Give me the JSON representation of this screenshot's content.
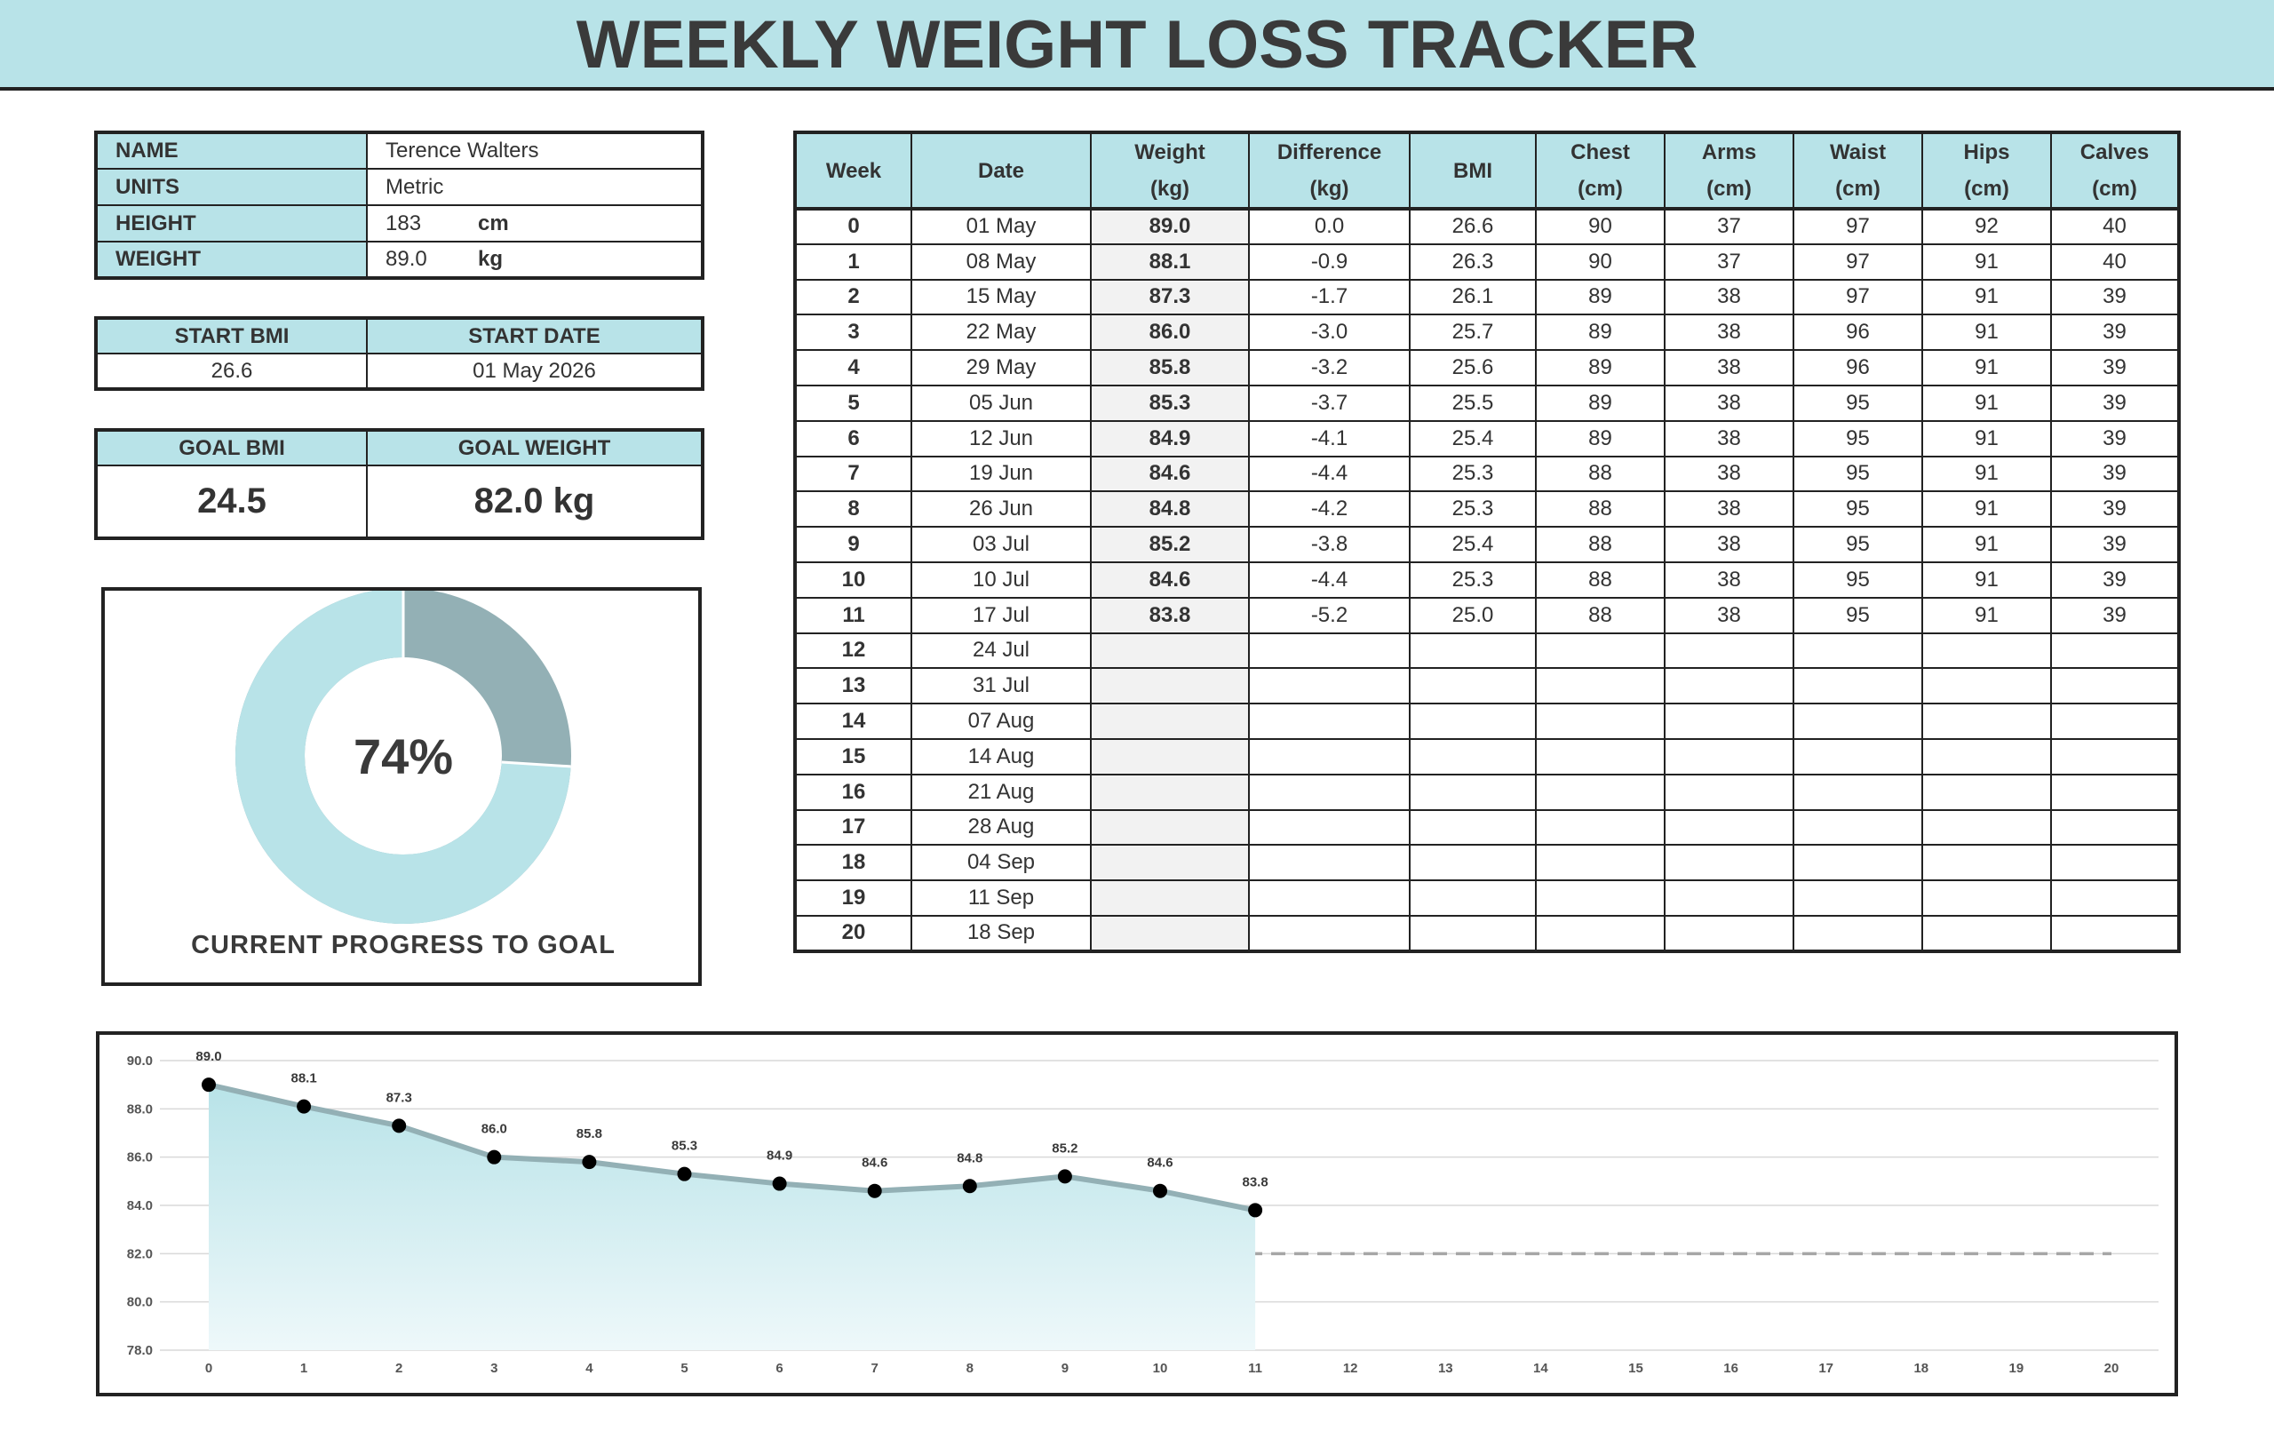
{
  "title": "WEEKLY WEIGHT LOSS TRACKER",
  "profile": [
    {
      "label": "NAME",
      "value": "Terence Walters"
    },
    {
      "label": "UNITS",
      "value": "Metric"
    },
    {
      "label": "HEIGHT",
      "value": "183",
      "unit": "cm"
    },
    {
      "label": "WEIGHT",
      "value": "89.0",
      "unit": "kg"
    }
  ],
  "start": {
    "headers": [
      "START BMI",
      "START DATE"
    ],
    "values": [
      "26.6",
      "01 May 2026"
    ]
  },
  "goal": {
    "headers": [
      "GOAL BMI",
      "GOAL WEIGHT"
    ],
    "values": [
      "24.5",
      "82.0 kg"
    ]
  },
  "progress": {
    "type": "donut",
    "value": 74,
    "label": "74%",
    "lim": [
      0,
      100
    ],
    "caption": "CURRENT PROGRESS TO GOAL",
    "colors": [
      "#b8e3e8",
      "#93b0b5"
    ]
  },
  "table": {
    "headers": [
      {
        "name": "Week"
      },
      {
        "name": "Date"
      },
      {
        "name": "Weight",
        "unit": "(kg)"
      },
      {
        "name": "Difference",
        "unit": "(kg)"
      },
      {
        "name": "BMI"
      },
      {
        "name": "Chest",
        "unit": "(cm)"
      },
      {
        "name": "Arms",
        "unit": "(cm)"
      },
      {
        "name": "Waist",
        "unit": "(cm)"
      },
      {
        "name": "Hips",
        "unit": "(cm)"
      },
      {
        "name": "Calves",
        "unit": "(cm)"
      }
    ],
    "rows": [
      [
        "0",
        "01 May",
        "89.0",
        "0.0",
        "26.6",
        "90",
        "37",
        "97",
        "92",
        "40"
      ],
      [
        "1",
        "08 May",
        "88.1",
        "-0.9",
        "26.3",
        "90",
        "37",
        "97",
        "91",
        "40"
      ],
      [
        "2",
        "15 May",
        "87.3",
        "-1.7",
        "26.1",
        "89",
        "38",
        "97",
        "91",
        "39"
      ],
      [
        "3",
        "22 May",
        "86.0",
        "-3.0",
        "25.7",
        "89",
        "38",
        "96",
        "91",
        "39"
      ],
      [
        "4",
        "29 May",
        "85.8",
        "-3.2",
        "25.6",
        "89",
        "38",
        "96",
        "91",
        "39"
      ],
      [
        "5",
        "05 Jun",
        "85.3",
        "-3.7",
        "25.5",
        "89",
        "38",
        "95",
        "91",
        "39"
      ],
      [
        "6",
        "12 Jun",
        "84.9",
        "-4.1",
        "25.4",
        "89",
        "38",
        "95",
        "91",
        "39"
      ],
      [
        "7",
        "19 Jun",
        "84.6",
        "-4.4",
        "25.3",
        "88",
        "38",
        "95",
        "91",
        "39"
      ],
      [
        "8",
        "26 Jun",
        "84.8",
        "-4.2",
        "25.3",
        "88",
        "38",
        "95",
        "91",
        "39"
      ],
      [
        "9",
        "03 Jul",
        "85.2",
        "-3.8",
        "25.4",
        "88",
        "38",
        "95",
        "91",
        "39"
      ],
      [
        "10",
        "10 Jul",
        "84.6",
        "-4.4",
        "25.3",
        "88",
        "38",
        "95",
        "91",
        "39"
      ],
      [
        "11",
        "17 Jul",
        "83.8",
        "-5.2",
        "25.0",
        "88",
        "38",
        "95",
        "91",
        "39"
      ],
      [
        "12",
        "24 Jul"
      ],
      [
        "13",
        "31 Jul"
      ],
      [
        "14",
        "07 Aug"
      ],
      [
        "15",
        "14 Aug"
      ],
      [
        "16",
        "21 Aug"
      ],
      [
        "17",
        "28 Aug"
      ],
      [
        "18",
        "04 Sep"
      ],
      [
        "19",
        "11 Sep"
      ],
      [
        "20",
        "18 Sep"
      ]
    ]
  },
  "chart_data": {
    "type": "line",
    "x": [
      0,
      1,
      2,
      3,
      4,
      5,
      6,
      7,
      8,
      9,
      10,
      11,
      12,
      13,
      14,
      15,
      16,
      17,
      18,
      19,
      20
    ],
    "values": [
      89.0,
      88.1,
      87.3,
      86.0,
      85.8,
      85.3,
      84.9,
      84.6,
      84.8,
      85.2,
      84.6,
      83.8,
      null,
      null,
      null,
      null,
      null,
      null,
      null,
      null,
      null
    ],
    "value_labels": [
      "89.0",
      "88.1",
      "87.3",
      "86.0",
      "85.8",
      "85.3",
      "84.9",
      "84.6",
      "84.8",
      "85.2",
      "84.6",
      "83.8",
      null,
      null,
      null,
      null,
      null,
      null,
      null,
      null,
      null
    ],
    "xlim": [
      0,
      20
    ],
    "ylim": [
      78,
      90
    ],
    "yticks": [
      {
        "value": 90,
        "label": "90.0"
      },
      {
        "value": 88,
        "label": "88.0"
      },
      {
        "value": 86,
        "label": "86.0"
      },
      {
        "value": 84,
        "label": "84.0"
      },
      {
        "value": 82,
        "label": "82.0"
      },
      {
        "value": 80,
        "label": "80.0"
      },
      {
        "value": 78,
        "label": "78.0"
      }
    ],
    "goal": 82,
    "color": "#93b0b5",
    "marker_color": "#000000",
    "grid": true
  }
}
